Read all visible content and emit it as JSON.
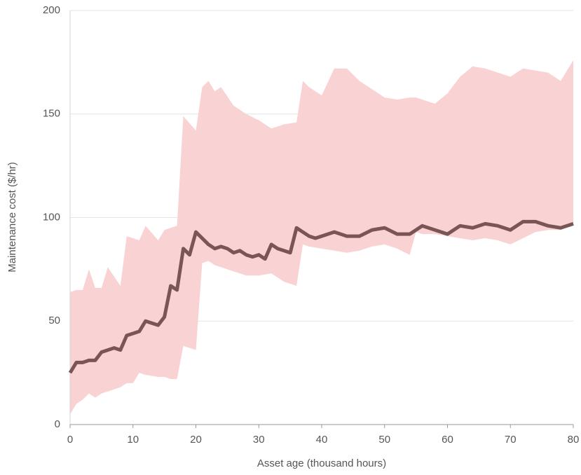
{
  "chart_data": {
    "type": "line",
    "xlabel": "Asset age (thousand hours)",
    "ylabel": "Maintenance cost ($/hr)",
    "xlim": [
      0,
      80
    ],
    "xticks": [
      0,
      10,
      20,
      30,
      40,
      50,
      60,
      70,
      80
    ],
    "ylim": [
      0,
      200
    ],
    "yticks": [
      0,
      50,
      100,
      150,
      200
    ],
    "grid": true,
    "band": {
      "color": "#f9d3d3",
      "x": [
        0,
        1,
        2,
        3,
        4,
        5,
        6,
        8,
        9,
        10,
        11,
        12,
        14,
        15,
        16,
        17,
        18,
        20,
        21,
        22,
        23,
        24,
        26,
        28,
        30,
        32,
        34,
        36,
        37,
        38,
        40,
        42,
        44,
        46,
        48,
        50,
        52,
        54,
        55,
        56,
        58,
        60,
        62,
        64,
        66,
        68,
        70,
        72,
        74,
        76,
        78,
        80
      ],
      "upper": [
        64,
        65,
        65,
        75,
        66,
        66,
        76,
        67,
        91,
        90,
        89,
        96,
        89,
        94,
        95,
        96,
        149,
        142,
        163,
        166,
        161,
        163,
        154,
        150,
        147,
        143,
        145,
        146,
        166,
        163,
        159,
        172,
        172,
        166,
        162,
        158,
        157,
        158,
        158,
        157,
        155,
        160,
        168,
        173,
        172,
        170,
        168,
        172,
        171,
        170,
        166,
        176
      ],
      "lower": [
        5,
        10,
        12,
        15,
        13,
        15,
        16,
        18,
        20,
        20,
        25,
        24,
        23,
        23,
        22,
        22,
        38,
        36,
        78,
        79,
        77,
        76,
        74,
        72,
        72,
        73,
        69,
        67,
        87,
        86,
        85,
        84,
        83,
        84,
        86,
        87,
        85,
        82,
        93,
        92,
        92,
        91,
        90,
        89,
        90,
        89,
        87,
        90,
        93,
        94,
        94,
        97
      ]
    },
    "series": [
      {
        "color": "#7a5555",
        "x": [
          0,
          1,
          2,
          3,
          4,
          5,
          6,
          7,
          8,
          9,
          10,
          11,
          12,
          13,
          14,
          15,
          16,
          17,
          18,
          19,
          20,
          21,
          22,
          23,
          24,
          25,
          26,
          27,
          28,
          29,
          30,
          31,
          32,
          33,
          34,
          35,
          36,
          37,
          38,
          39,
          40,
          42,
          44,
          46,
          48,
          50,
          52,
          54,
          56,
          58,
          60,
          62,
          64,
          66,
          68,
          70,
          72,
          74,
          76,
          78,
          80
        ],
        "values": [
          25,
          30,
          30,
          31,
          31,
          35,
          36,
          37,
          36,
          43,
          44,
          45,
          50,
          49,
          48,
          52,
          67,
          65,
          85,
          82,
          93,
          90,
          87,
          85,
          86,
          85,
          83,
          84,
          82,
          81,
          82,
          80,
          87,
          85,
          84,
          83,
          95,
          93,
          91,
          90,
          91,
          93,
          91,
          91,
          94,
          95,
          92,
          92,
          96,
          94,
          92,
          96,
          95,
          97,
          96,
          94,
          98,
          98,
          96,
          95,
          97
        ]
      }
    ]
  }
}
